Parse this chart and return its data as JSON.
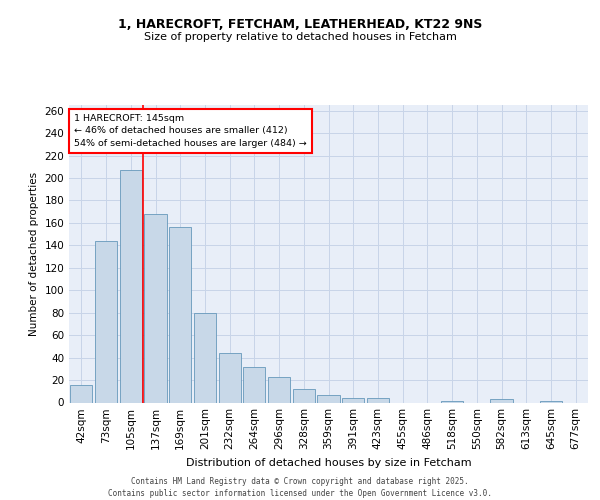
{
  "title_line1": "1, HARECROFT, FETCHAM, LEATHERHEAD, KT22 9NS",
  "title_line2": "Size of property relative to detached houses in Fetcham",
  "xlabel": "Distribution of detached houses by size in Fetcham",
  "ylabel": "Number of detached properties",
  "categories": [
    "42sqm",
    "73sqm",
    "105sqm",
    "137sqm",
    "169sqm",
    "201sqm",
    "232sqm",
    "264sqm",
    "296sqm",
    "328sqm",
    "359sqm",
    "391sqm",
    "423sqm",
    "455sqm",
    "486sqm",
    "518sqm",
    "550sqm",
    "582sqm",
    "613sqm",
    "645sqm",
    "677sqm"
  ],
  "values": [
    16,
    144,
    207,
    168,
    156,
    80,
    44,
    32,
    23,
    12,
    7,
    4,
    4,
    0,
    0,
    1,
    0,
    3,
    0,
    1,
    0
  ],
  "bar_color": "#c8d8e8",
  "bar_edge_color": "#6699bb",
  "vline_color": "red",
  "grid_color": "#c8d4e8",
  "bg_color": "#e8eef8",
  "annotation_text": "1 HARECROFT: 145sqm\n← 46% of detached houses are smaller (412)\n54% of semi-detached houses are larger (484) →",
  "annotation_box_color": "white",
  "annotation_box_edge_color": "red",
  "footer_text": "Contains HM Land Registry data © Crown copyright and database right 2025.\nContains public sector information licensed under the Open Government Licence v3.0.",
  "ylim": [
    0,
    265
  ],
  "yticks": [
    0,
    20,
    40,
    60,
    80,
    100,
    120,
    140,
    160,
    180,
    200,
    220,
    240,
    260
  ],
  "vline_pos": 2.5
}
